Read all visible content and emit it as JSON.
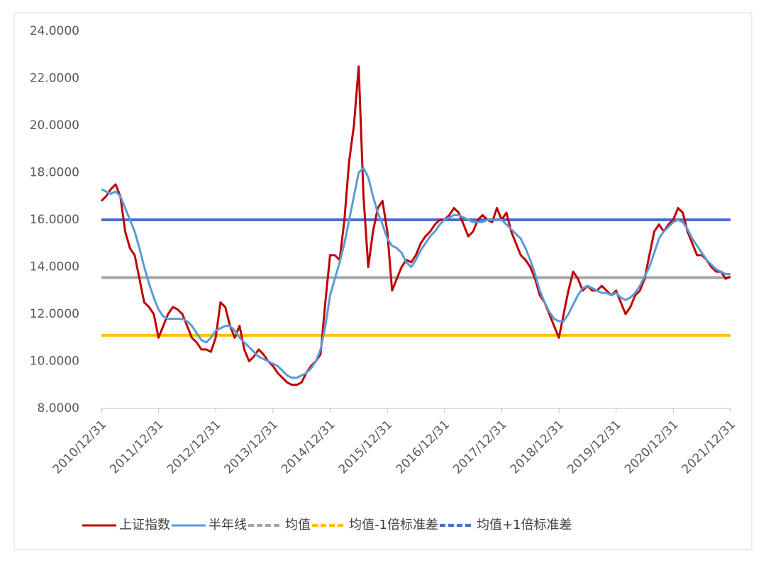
{
  "chart_data": {
    "type": "line",
    "x": [
      "2010/12",
      "2011/01",
      "2011/02",
      "2011/03",
      "2011/04",
      "2011/05",
      "2011/06",
      "2011/07",
      "2011/08",
      "2011/09",
      "2011/10",
      "2011/11",
      "2011/12",
      "2012/01",
      "2012/02",
      "2012/03",
      "2012/04",
      "2012/05",
      "2012/06",
      "2012/07",
      "2012/08",
      "2012/09",
      "2012/10",
      "2012/11",
      "2012/12",
      "2013/01",
      "2013/02",
      "2013/03",
      "2013/04",
      "2013/05",
      "2013/06",
      "2013/07",
      "2013/08",
      "2013/09",
      "2013/10",
      "2013/11",
      "2013/12",
      "2014/01",
      "2014/02",
      "2014/03",
      "2014/04",
      "2014/05",
      "2014/06",
      "2014/07",
      "2014/08",
      "2014/09",
      "2014/10",
      "2014/11",
      "2014/12",
      "2015/01",
      "2015/02",
      "2015/03",
      "2015/04",
      "2015/05",
      "2015/06",
      "2015/07",
      "2015/08",
      "2015/09",
      "2015/10",
      "2015/11",
      "2015/12",
      "2016/01",
      "2016/02",
      "2016/03",
      "2016/04",
      "2016/05",
      "2016/06",
      "2016/07",
      "2016/08",
      "2016/09",
      "2016/10",
      "2016/11",
      "2016/12",
      "2017/01",
      "2017/02",
      "2017/03",
      "2017/04",
      "2017/05",
      "2017/06",
      "2017/07",
      "2017/08",
      "2017/09",
      "2017/10",
      "2017/11",
      "2017/12",
      "2018/01",
      "2018/02",
      "2018/03",
      "2018/04",
      "2018/05",
      "2018/06",
      "2018/07",
      "2018/08",
      "2018/09",
      "2018/10",
      "2018/11",
      "2018/12",
      "2019/01",
      "2019/02",
      "2019/03",
      "2019/04",
      "2019/05",
      "2019/06",
      "2019/07",
      "2019/08",
      "2019/09",
      "2019/10",
      "2019/11",
      "2019/12",
      "2020/01",
      "2020/02",
      "2020/03",
      "2020/04",
      "2020/05",
      "2020/06",
      "2020/07",
      "2020/08",
      "2020/09",
      "2020/10",
      "2020/11",
      "2020/12",
      "2021/01",
      "2021/02",
      "2021/03",
      "2021/04",
      "2021/05",
      "2021/06",
      "2021/07",
      "2021/08",
      "2021/09",
      "2021/10",
      "2021/11",
      "2021/12"
    ],
    "series": [
      {
        "name": "上证指数",
        "color": "#c00000",
        "values": [
          16.8,
          17.0,
          17.3,
          17.5,
          17.0,
          15.5,
          14.8,
          14.5,
          13.5,
          12.5,
          12.3,
          12.0,
          11.0,
          11.5,
          12.0,
          12.3,
          12.2,
          12.0,
          11.5,
          11.0,
          10.8,
          10.5,
          10.5,
          10.4,
          11.0,
          12.5,
          12.3,
          11.5,
          11.0,
          11.5,
          10.5,
          10.0,
          10.2,
          10.5,
          10.3,
          10.0,
          9.8,
          9.5,
          9.3,
          9.1,
          9.0,
          9.0,
          9.1,
          9.5,
          9.8,
          10.0,
          10.3,
          12.5,
          14.5,
          14.5,
          14.3,
          16.0,
          18.5,
          20.0,
          22.5,
          17.0,
          14.0,
          15.5,
          16.5,
          16.8,
          15.5,
          13.0,
          13.5,
          14.0,
          14.3,
          14.2,
          14.5,
          15.0,
          15.3,
          15.5,
          15.8,
          16.0,
          16.0,
          16.2,
          16.5,
          16.3,
          15.8,
          15.3,
          15.5,
          16.0,
          16.2,
          16.0,
          15.9,
          16.5,
          16.0,
          16.3,
          15.5,
          15.0,
          14.5,
          14.3,
          14.0,
          13.5,
          12.8,
          12.5,
          12.0,
          11.5,
          11.0,
          12.0,
          13.0,
          13.8,
          13.5,
          13.0,
          13.2,
          13.0,
          13.0,
          13.2,
          13.0,
          12.8,
          13.0,
          12.5,
          12.0,
          12.3,
          12.8,
          13.0,
          13.5,
          14.5,
          15.5,
          15.8,
          15.5,
          15.8,
          16.0,
          16.5,
          16.3,
          15.5,
          15.0,
          14.5,
          14.5,
          14.3,
          14.0,
          13.8,
          13.8,
          13.5,
          13.6
        ]
      },
      {
        "name": "半年线",
        "color": "#5b9bd5",
        "values": [
          17.3,
          17.2,
          17.1,
          17.2,
          17.0,
          16.5,
          16.0,
          15.5,
          14.8,
          14.0,
          13.3,
          12.7,
          12.2,
          11.9,
          11.8,
          11.8,
          11.8,
          11.8,
          11.7,
          11.5,
          11.2,
          10.9,
          10.8,
          11.0,
          11.3,
          11.4,
          11.5,
          11.5,
          11.3,
          11.0,
          10.8,
          10.6,
          10.4,
          10.2,
          10.1,
          10.0,
          9.9,
          9.8,
          9.6,
          9.4,
          9.3,
          9.3,
          9.4,
          9.5,
          9.7,
          10.0,
          10.5,
          11.5,
          12.8,
          13.5,
          14.2,
          15.0,
          16.0,
          17.0,
          18.0,
          18.2,
          17.8,
          17.0,
          16.3,
          15.8,
          15.2,
          14.9,
          14.8,
          14.6,
          14.2,
          14.0,
          14.3,
          14.7,
          15.0,
          15.3,
          15.5,
          15.8,
          16.0,
          16.1,
          16.2,
          16.2,
          16.1,
          16.0,
          15.9,
          15.9,
          15.9,
          16.0,
          16.0,
          16.0,
          16.0,
          15.8,
          15.6,
          15.4,
          15.2,
          14.8,
          14.3,
          13.7,
          13.0,
          12.5,
          12.1,
          11.8,
          11.7,
          11.7,
          12.0,
          12.4,
          12.8,
          13.1,
          13.2,
          13.1,
          13.0,
          12.9,
          12.9,
          12.8,
          12.9,
          12.7,
          12.6,
          12.7,
          12.9,
          13.2,
          13.6,
          14.0,
          14.6,
          15.2,
          15.5,
          15.7,
          15.9,
          16.0,
          15.9,
          15.6,
          15.2,
          14.9,
          14.6,
          14.3,
          14.1,
          13.9,
          13.8,
          13.7,
          13.7
        ]
      },
      {
        "name": "均值",
        "color": "#a5a5a5",
        "value": 13.55
      },
      {
        "name": "均值-1倍标准差",
        "color": "#ffc000",
        "value": 11.1
      },
      {
        "name": "均值+1倍标准差",
        "color": "#4472c4",
        "value": 16.0
      }
    ],
    "xlim": [
      "2010/12/31",
      "2021/12/31"
    ],
    "xticks": [
      "2010/12/31",
      "2011/12/31",
      "2012/12/31",
      "2013/12/31",
      "2014/12/31",
      "2015/12/31",
      "2016/12/31",
      "2017/12/31",
      "2018/12/31",
      "2019/12/31",
      "2020/12/31",
      "2021/12/31"
    ],
    "ylim": [
      8,
      24
    ],
    "yticks": [
      {
        "value": 8,
        "label": "8.0000"
      },
      {
        "value": 10,
        "label": "10.0000"
      },
      {
        "value": 12,
        "label": "12.0000"
      },
      {
        "value": 14,
        "label": "14.0000"
      },
      {
        "value": 16,
        "label": "16.0000"
      },
      {
        "value": 18,
        "label": "18.0000"
      },
      {
        "value": 20,
        "label": "20.0000"
      },
      {
        "value": 22,
        "label": "22.0000"
      },
      {
        "value": 24,
        "label": "24.0000"
      }
    ],
    "legend": "bottom"
  }
}
